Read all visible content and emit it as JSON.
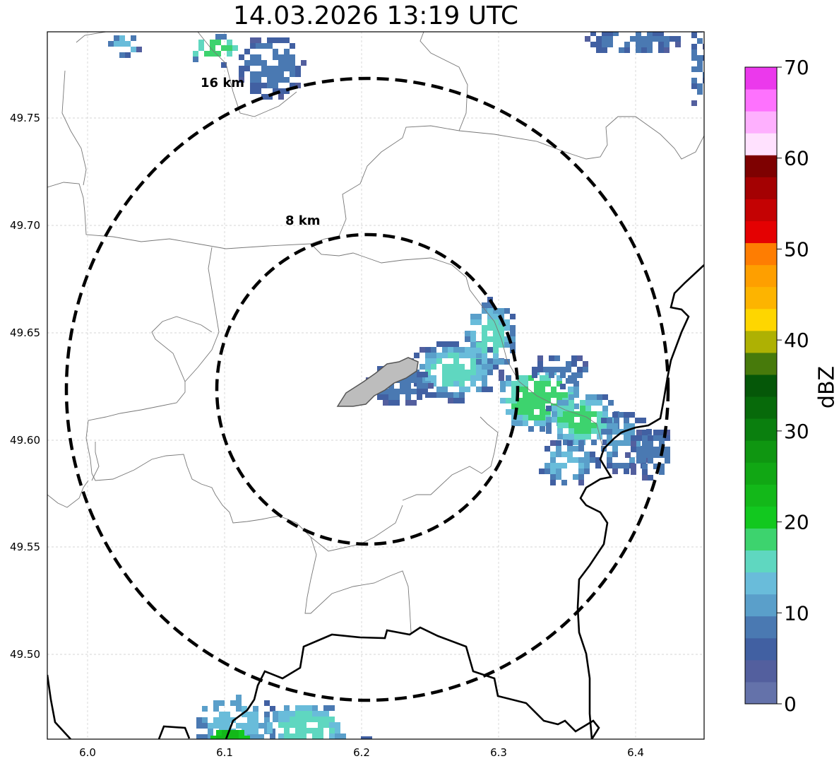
{
  "title": "14.03.2026 13:19 UTC",
  "map": {
    "lon_range": [
      5.97,
      6.45
    ],
    "lat_range": [
      49.46,
      49.79
    ],
    "lon_ticks": [
      "6.0",
      "6.1",
      "6.2",
      "6.3",
      "6.4"
    ],
    "lat_ticks": [
      "49.75",
      "49.70",
      "49.65",
      "49.60",
      "49.55",
      "49.50"
    ],
    "rings": [
      {
        "label": "8 km"
      },
      {
        "label": "16 km"
      }
    ],
    "radar_center": {
      "lon": 6.205,
      "lat": 49.623
    }
  },
  "colorbar": {
    "label": "dBZ",
    "min": 0,
    "max": 70,
    "ticks": [
      "0",
      "10",
      "20",
      "30",
      "40",
      "50",
      "60",
      "70"
    ],
    "colors": [
      "#6472aa",
      "#535f9e",
      "#4160a2",
      "#4a79b2",
      "#5a9fca",
      "#69bcda",
      "#5fd7c0",
      "#3dd36e",
      "#12c81f",
      "#13b819",
      "#11a714",
      "#0f9611",
      "#0a7f0e",
      "#076a0a",
      "#055708",
      "#477a0b",
      "#aeb103",
      "#fed600",
      "#fdb400",
      "#fe9f00",
      "#fe7d02",
      "#e40102",
      "#c40203",
      "#a40102",
      "#7e0101",
      "#ffe1fe",
      "#feb0fe",
      "#fe72fe",
      "#eb39ec"
    ]
  }
}
